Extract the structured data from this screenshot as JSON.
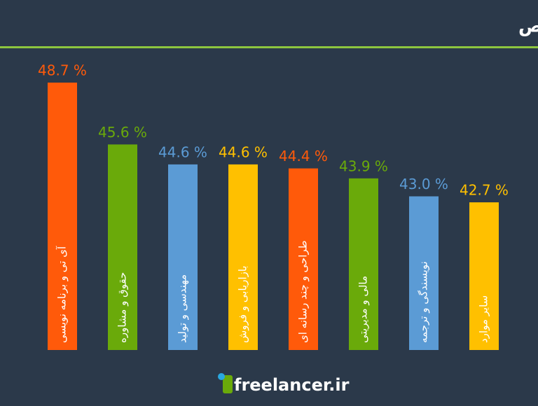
{
  "chart_data": {
    "type": "bar",
    "title": "میزان رضایت شغلی بر اساس تخصص",
    "categories": [
      "آی تی و برنامه نویسی",
      "حقوق و مشاوره",
      "مهندسی و تولید",
      "بازاریابی و فروش",
      "طراحی و چند رسانه ای",
      "مالی و مدیریتی",
      "نویسندگی و ترجمه",
      "سایر موارد"
    ],
    "values": [
      48.7,
      45.6,
      44.6,
      44.6,
      44.4,
      43.9,
      43.0,
      42.7
    ],
    "value_labels": [
      "48.7 %",
      "45.6 %",
      "44.6 %",
      "44.6 %",
      "44.4 %",
      "43.9 %",
      "43.0 %",
      "42.7 %"
    ],
    "colors": [
      "#ff5a0a",
      "#6aaa0a",
      "#5b9bd5",
      "#ffc000",
      "#ff5a0a",
      "#6aaa0a",
      "#5b9bd5",
      "#ffc000"
    ],
    "ylim": [
      35.3,
      48.7
    ],
    "logo": "freelancer.ir"
  }
}
